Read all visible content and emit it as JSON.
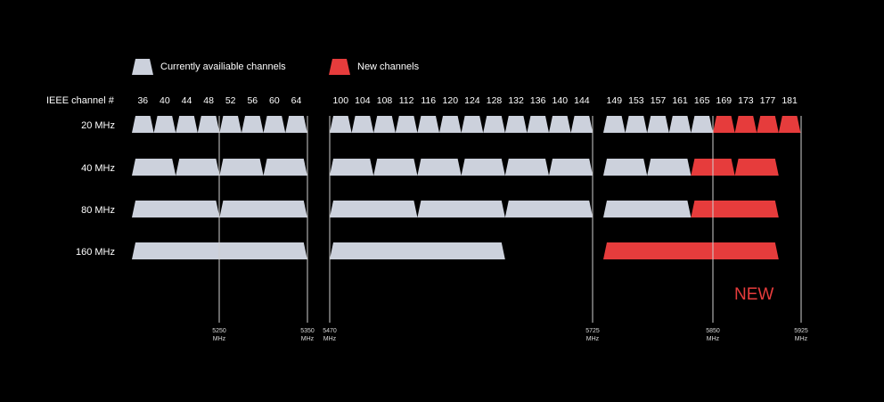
{
  "colors": {
    "current": "#ccd1dc",
    "new": "#e63c3c",
    "background": "#000000",
    "line": "#d0d0d0"
  },
  "legend": {
    "current_label": "Currently availiable channels",
    "new_label": "New channels"
  },
  "row_header": "IEEE channel #",
  "channels": [
    "36",
    "40",
    "44",
    "48",
    "52",
    "56",
    "60",
    "64",
    "100",
    "104",
    "108",
    "112",
    "116",
    "120",
    "124",
    "128",
    "132",
    "136",
    "140",
    "144",
    "149",
    "153",
    "157",
    "161",
    "165",
    "169",
    "173",
    "177",
    "181"
  ],
  "new_from_index": 25,
  "rows": [
    {
      "label": "20 MHz",
      "span": 1
    },
    {
      "label": "40 MHz",
      "span": 2
    },
    {
      "label": "80 MHz",
      "span": 4
    },
    {
      "label": "160 MHz",
      "span": 8
    }
  ],
  "groups": [
    {
      "start": 0,
      "count": 8
    },
    {
      "start": 8,
      "count": 12
    },
    {
      "start": 20,
      "count": 9
    }
  ],
  "frequency_markers": [
    {
      "value": "5250",
      "unit": "MHz"
    },
    {
      "value": "5350",
      "unit": "MHz"
    },
    {
      "value": "5470",
      "unit": "MHz"
    },
    {
      "value": "5725",
      "unit": "MHz"
    },
    {
      "value": "5850",
      "unit": "MHz"
    },
    {
      "value": "5925",
      "unit": "MHz"
    }
  ],
  "new_badge": "NEW"
}
